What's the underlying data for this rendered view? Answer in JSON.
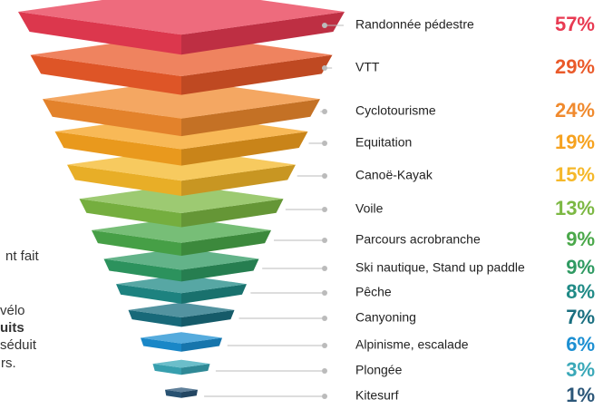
{
  "chart_data": {
    "type": "funnel",
    "categories": [
      "Randonnée pédestre",
      "VTT",
      "Cyclotourisme",
      "Equitation",
      "Canoë-Kayak",
      "Voile",
      "Parcours acrobranche",
      "Ski nautique, Stand up paddle",
      "Pêche",
      "Canyoning",
      "Alpinisme, escalade",
      "Plongée",
      "Kitesurf"
    ],
    "values": [
      57,
      29,
      24,
      19,
      15,
      13,
      9,
      9,
      8,
      7,
      6,
      3,
      1
    ],
    "value_labels": [
      "57%",
      "29%",
      "24%",
      "19%",
      "15%",
      "13%",
      "9%",
      "9%",
      "8%",
      "7%",
      "6%",
      "3%",
      "1%"
    ],
    "colors": [
      "#e83a52",
      "#ea5a2a",
      "#f08a2e",
      "#f6a21f",
      "#f5b82a",
      "#7cb843",
      "#4aa84a",
      "#2f9a62",
      "#1f8a86",
      "#1a6f80",
      "#1c8fd2",
      "#3aa8b8",
      "#2b5678"
    ],
    "annotations": [
      "nt fait",
      "vélo",
      "uits",
      "séduit",
      "rs."
    ]
  }
}
